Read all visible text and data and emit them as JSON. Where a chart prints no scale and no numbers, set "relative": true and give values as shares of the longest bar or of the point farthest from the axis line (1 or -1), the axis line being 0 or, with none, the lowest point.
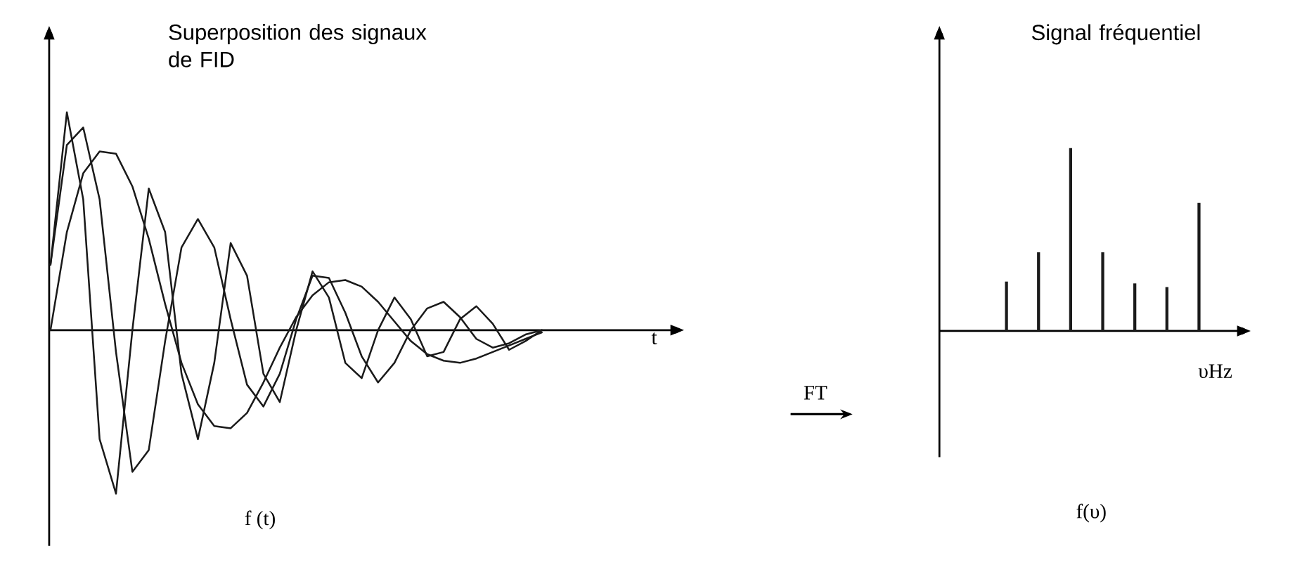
{
  "chart_data": [
    {
      "type": "line",
      "title": "Superposition des signaux de FID",
      "xlabel": "t",
      "relative": true,
      "categories": [
        null,
        null,
        null,
        null,
        null,
        null,
        null,
        null,
        null,
        null,
        null,
        null,
        null,
        null,
        null,
        null,
        null,
        null,
        null,
        null,
        null,
        null,
        null,
        null,
        null,
        null,
        null,
        null,
        null,
        null,
        null
      ],
      "series": [
        {
          "color": "#1a1a1a",
          "values": [
            0.0,
            0.45,
            0.72,
            0.82,
            0.81,
            0.66,
            0.42,
            0.12,
            -0.15,
            -0.34,
            -0.44,
            -0.45,
            -0.38,
            -0.24,
            -0.08,
            0.06,
            0.16,
            0.22,
            0.23,
            0.2,
            0.13,
            0.04,
            -0.05,
            -0.11,
            -0.14,
            -0.15,
            -0.13,
            -0.1,
            -0.07,
            -0.04,
            -0.01
          ]
        },
        {
          "color": "#1a1a1a",
          "values": [
            0.3,
            0.85,
            0.93,
            0.6,
            -0.1,
            -0.65,
            -0.55,
            -0.05,
            0.38,
            0.51,
            0.38,
            0.05,
            -0.25,
            -0.35,
            -0.2,
            0.05,
            0.25,
            0.24,
            0.08,
            -0.12,
            -0.24,
            -0.15,
            0.0,
            0.1,
            0.13,
            0.06,
            -0.04,
            -0.08,
            -0.06,
            -0.02,
            0.0
          ]
        },
        {
          "color": "#1a1a1a",
          "values": [
            0.3,
            1,
            0.6,
            -0.5,
            -0.75,
            0.0,
            0.65,
            0.45,
            -0.2,
            -0.5,
            -0.15,
            0.4,
            0.25,
            -0.2,
            -0.33,
            0.0,
            0.27,
            0.15,
            -0.15,
            -0.22,
            0.0,
            0.15,
            0.05,
            -0.12,
            -0.1,
            0.05,
            0.11,
            0.03,
            -0.09,
            -0.05,
            0.0
          ]
        }
      ],
      "annotations": [
        "f (t)"
      ]
    },
    {
      "type": "bar",
      "title": "Signal fréquentiel",
      "xlabel": "υHz",
      "relative": true,
      "categories": [
        null,
        null,
        null,
        null,
        null,
        null,
        null
      ],
      "values": [
        0.27,
        0.43,
        1,
        0.43,
        0.26,
        0.24,
        0.7
      ],
      "color": "#1a1a1a",
      "annotations": [
        "FT",
        "f(υ)"
      ]
    }
  ]
}
